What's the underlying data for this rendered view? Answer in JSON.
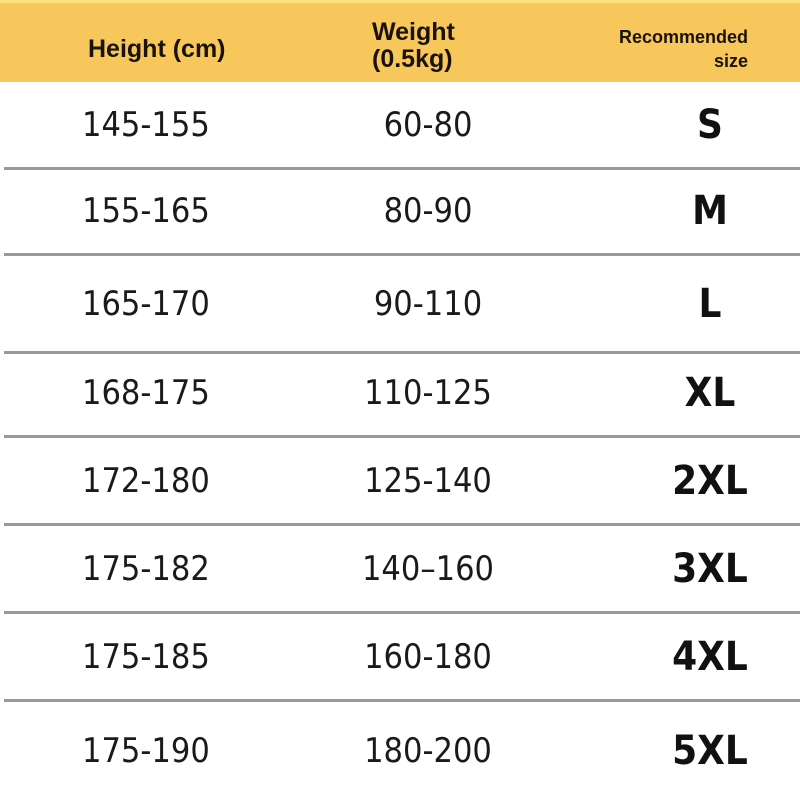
{
  "header": {
    "height": "Height (cm)",
    "weight_line1": "Weight",
    "weight_line2": "(0.5kg)",
    "size_line1": "Recommended",
    "size_line2": "size"
  },
  "colors": {
    "header_bg": "#f8c75c",
    "divider": "#9a9a9a"
  },
  "rows": [
    {
      "height": "145-155",
      "weight": "60-80",
      "size": "S"
    },
    {
      "height": "155-165",
      "weight": "80-90",
      "size": "M"
    },
    {
      "height": "165-170",
      "weight": "90-110",
      "size": "L"
    },
    {
      "height": "168-175",
      "weight": "110-125",
      "size": "XL"
    },
    {
      "height": "172-180",
      "weight": "125-140",
      "size": "2XL"
    },
    {
      "height": "175-182",
      "weight": "140–160",
      "size": "3XL"
    },
    {
      "height": "175-185",
      "weight": "160-180",
      "size": "4XL"
    },
    {
      "height": "175-190",
      "weight": "180-200",
      "size": "5XL"
    }
  ]
}
